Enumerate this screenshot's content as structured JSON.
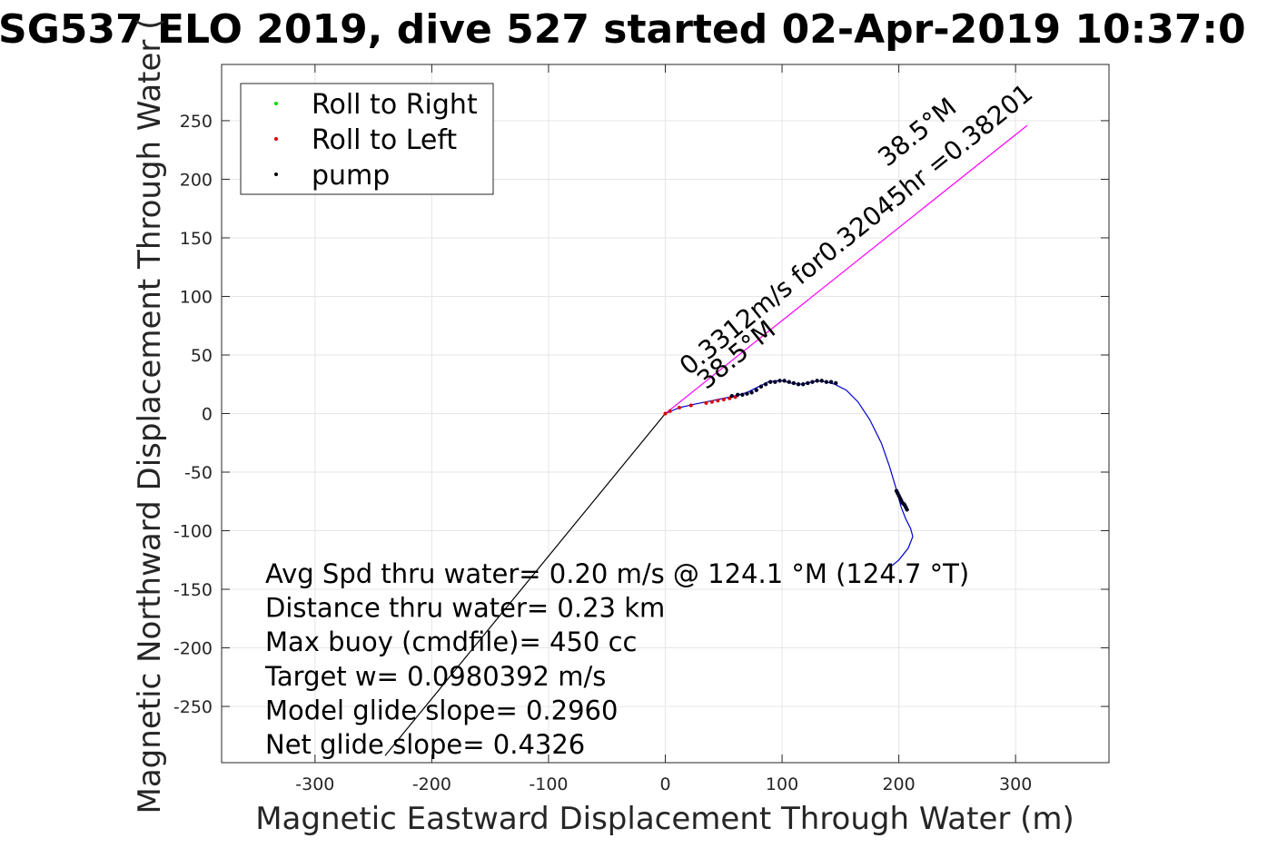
{
  "chart_data": {
    "type": "line",
    "title": "SG537 ELO 2019, dive 527 started 02-Apr-2019 10:37:0",
    "xlabel": "Magnetic Eastward Displacement Through Water (m)",
    "ylabel": "Magnetic Northward Displacement Through Water (",
    "xlim": [
      -380,
      380
    ],
    "ylim": [
      -298,
      298
    ],
    "x_ticks": [
      -300,
      -200,
      -100,
      0,
      100,
      200,
      300
    ],
    "y_ticks": [
      -250,
      -200,
      -150,
      -100,
      -50,
      0,
      50,
      100,
      150,
      200,
      250
    ],
    "grid": true,
    "legend": {
      "position": "top-left",
      "entries": [
        {
          "label": "Roll to Right",
          "color": "#00dd00"
        },
        {
          "label": "Roll to Left",
          "color": "#dd0000"
        },
        {
          "label": "pump",
          "color": "#000000"
        }
      ]
    },
    "series": [
      {
        "color": "#0000cc",
        "x": [
          0,
          12,
          25,
          40,
          55,
          70,
          80,
          88,
          95,
          100,
          108,
          115,
          122,
          130,
          138,
          145,
          155,
          165,
          175,
          185,
          192,
          198,
          202,
          206,
          210,
          212,
          208,
          200,
          194
        ],
        "y": [
          0,
          5,
          8,
          11,
          14,
          18,
          23,
          27,
          28,
          28,
          26,
          25,
          26,
          28,
          27,
          25,
          20,
          10,
          -5,
          -25,
          -45,
          -65,
          -80,
          -90,
          -98,
          -105,
          -115,
          -125,
          -130
        ]
      },
      {
        "color": "#ff00ff",
        "x": [
          0,
          310
        ],
        "y": [
          0,
          246
        ]
      },
      {
        "color": "#000000",
        "x": [
          0,
          -240
        ],
        "y": [
          0,
          -292
        ]
      }
    ],
    "markers": {
      "roll_left": {
        "color": "#dd0000",
        "x": [
          0,
          4,
          12,
          22,
          35,
          40,
          45,
          50,
          55,
          60
        ],
        "y": [
          0,
          2,
          5,
          7,
          9,
          10,
          11,
          12,
          13,
          14
        ]
      },
      "pump": {
        "color": "#000022",
        "x": [
          57,
          62,
          66,
          70,
          74,
          78,
          82,
          86,
          90,
          94,
          98,
          102,
          106,
          110,
          114,
          118,
          122,
          126,
          130,
          134,
          138,
          142,
          146,
          198,
          199,
          200,
          201,
          202,
          203,
          204,
          205,
          206,
          207
        ],
        "y": [
          15,
          16,
          16,
          17,
          18,
          20,
          23,
          25,
          27,
          27,
          28,
          28,
          27,
          26,
          25,
          25,
          26,
          27,
          28,
          28,
          27,
          27,
          26,
          -66,
          -68,
          -70,
          -72,
          -74,
          -76,
          -77,
          -78,
          -80,
          -82
        ]
      }
    },
    "annotations": [
      {
        "text": "0.3312m/s for0.32045hr =0.38201",
        "x": 20,
        "y": 32,
        "angle": -39
      },
      {
        "text": "38.5°M",
        "x": 35,
        "y": 20,
        "angle": -39
      },
      {
        "text": "38.5°M",
        "x": 190,
        "y": 210,
        "angle": -39
      }
    ],
    "stats": [
      "Avg Spd thru water=  0.20 m/s @ 124.1 °M (124.7 °T)",
      "Distance thru water=  0.23 km",
      "Max buoy (cmdfile)= 450 cc",
      "Target w= 0.0980392 m/s",
      "Model glide slope= 0.2960",
      "Net glide slope= 0.4326"
    ]
  }
}
